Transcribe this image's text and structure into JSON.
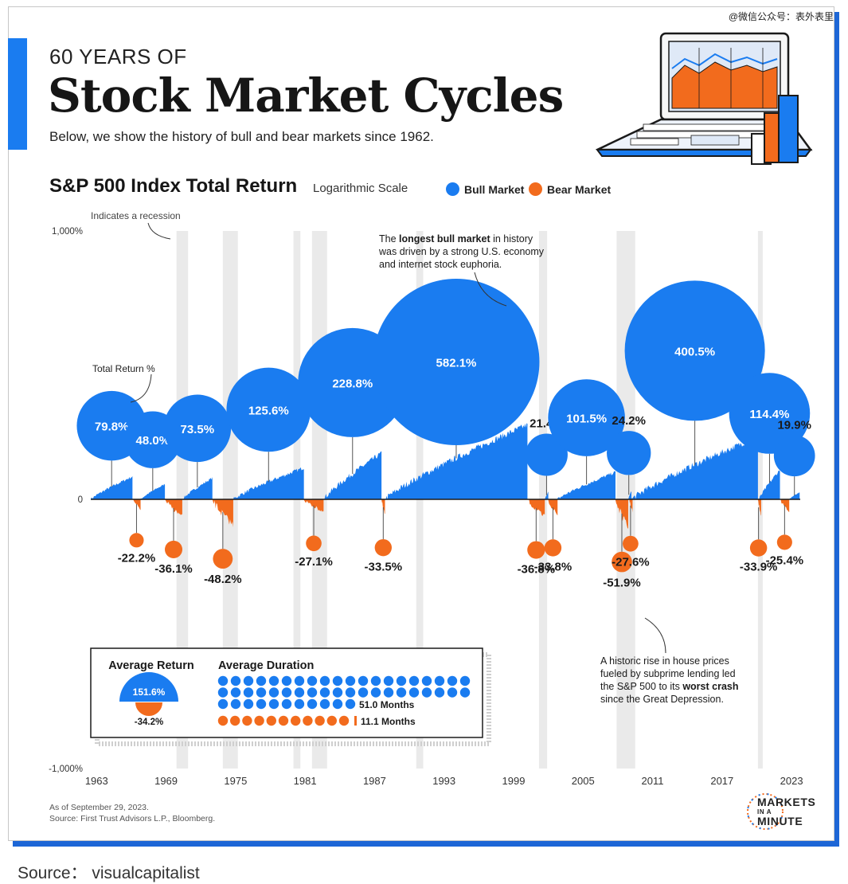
{
  "watermark": "@微信公众号：表外表里",
  "header": {
    "kicker": "60 YEARS OF",
    "title": "Stock Market Cycles",
    "subtitle": "Below, we show the history of bull and bear markets since 1962."
  },
  "colors": {
    "bull": "#1a7cf0",
    "bear": "#f26b1d",
    "recession": "#e3e3e3",
    "accent": "#1a7cf0"
  },
  "chart_data": {
    "type": "area",
    "title": "S&P 500 Index Total Return",
    "subtitle": "Logarithmic Scale",
    "scale": "log",
    "y_tick_labels": [
      "1,000%",
      "0",
      "-1,000%"
    ],
    "x_tick_labels": [
      "1963",
      "1969",
      "1975",
      "1981",
      "1987",
      "1993",
      "1999",
      "2005",
      "2011",
      "2017",
      "2023"
    ],
    "legend": [
      {
        "name": "Bull Market",
        "color": "#1a7cf0"
      },
      {
        "name": "Bear Market",
        "color": "#f26b1d"
      }
    ],
    "recessions": [
      {
        "start": 1969.9,
        "end": 1970.9
      },
      {
        "start": 1973.9,
        "end": 1975.2
      },
      {
        "start": 1980.0,
        "end": 1980.6
      },
      {
        "start": 1981.6,
        "end": 1982.9
      },
      {
        "start": 1990.6,
        "end": 1991.2
      },
      {
        "start": 2001.2,
        "end": 2001.9
      },
      {
        "start": 2007.9,
        "end": 2009.5
      },
      {
        "start": 2020.1,
        "end": 2020.4
      }
    ],
    "bull_markets": [
      {
        "start": 1962.5,
        "end": 1966.1,
        "value": 79.8,
        "label": "79.8%"
      },
      {
        "start": 1966.8,
        "end": 1968.9,
        "value": 48.0,
        "label": "48.0%"
      },
      {
        "start": 1970.4,
        "end": 1973.0,
        "value": 73.5,
        "label": "73.5%"
      },
      {
        "start": 1974.8,
        "end": 1980.9,
        "value": 125.6,
        "label": "125.6%"
      },
      {
        "start": 1982.6,
        "end": 1987.6,
        "value": 228.8,
        "label": "228.8%"
      },
      {
        "start": 1987.9,
        "end": 2000.2,
        "value": 582.1,
        "label": "582.1%"
      },
      {
        "start": 2001.7,
        "end": 2002.0,
        "value": 21.4,
        "label": "21.4%"
      },
      {
        "start": 2002.8,
        "end": 2007.8,
        "value": 101.5,
        "label": "101.5%"
      },
      {
        "start": 2008.9,
        "end": 2009.0,
        "value": 24.2,
        "label": "24.2%"
      },
      {
        "start": 2009.2,
        "end": 2020.1,
        "value": 400.5,
        "label": "400.5%"
      },
      {
        "start": 2020.2,
        "end": 2022.0,
        "value": 114.4,
        "label": "114.4%"
      },
      {
        "start": 2022.8,
        "end": 2023.7,
        "value": 19.9,
        "label": "19.9%"
      }
    ],
    "bear_markets": [
      {
        "start": 1966.1,
        "end": 1966.8,
        "value": -22.2,
        "label": "-22.2%"
      },
      {
        "start": 1968.9,
        "end": 1970.4,
        "value": -36.1,
        "label": "-36.1%"
      },
      {
        "start": 1973.0,
        "end": 1974.8,
        "value": -48.2,
        "label": "-48.2%"
      },
      {
        "start": 1980.9,
        "end": 1982.6,
        "value": -27.1,
        "label": "-27.1%"
      },
      {
        "start": 1987.6,
        "end": 1987.9,
        "value": -33.5,
        "label": "-33.5%"
      },
      {
        "start": 2000.2,
        "end": 2001.7,
        "value": -36.8,
        "label": "-36.8%"
      },
      {
        "start": 2002.0,
        "end": 2002.8,
        "value": -33.8,
        "label": "-33.8%"
      },
      {
        "start": 2007.8,
        "end": 2008.9,
        "value": -51.9,
        "label": "-51.9%"
      },
      {
        "start": 2009.0,
        "end": 2009.2,
        "value": -27.6,
        "label": "-27.6%"
      },
      {
        "start": 2020.1,
        "end": 2020.2,
        "value": -33.9,
        "label": "-33.9%"
      },
      {
        "start": 2022.0,
        "end": 2022.8,
        "value": -25.4,
        "label": "-25.4%"
      }
    ],
    "annotations": {
      "recession": "Indicates a recession",
      "total_return": "Total Return %",
      "longest_bull": [
        "The ",
        "longest bull market",
        " in history",
        "was driven by a strong U.S. economy",
        "and internet stock euphoria."
      ],
      "worst_crash": [
        "A historic rise in house prices",
        "fueled by subprime lending led",
        "the S&P 500 to its ",
        "worst crash",
        "since the Great Depression."
      ]
    },
    "summary": {
      "avg_return_title": "Average Return",
      "avg_duration_title": "Average Duration",
      "bull_avg_return": "151.6%",
      "bear_avg_return": "-34.2%",
      "bull_avg_duration": "51.0 Months",
      "bear_avg_duration": "11.1 Months",
      "bull_months": 51.0,
      "bear_months": 11.1
    }
  },
  "footer": {
    "as_of": "As of September 29, 2023.",
    "source": "Source: First Trust Advisors L.P., Bloomberg."
  },
  "logo": {
    "line1": "MARKETS",
    "line2": "IN A",
    "line3": "MINUTE"
  },
  "source_caption": "Source：  visualcapitalist"
}
